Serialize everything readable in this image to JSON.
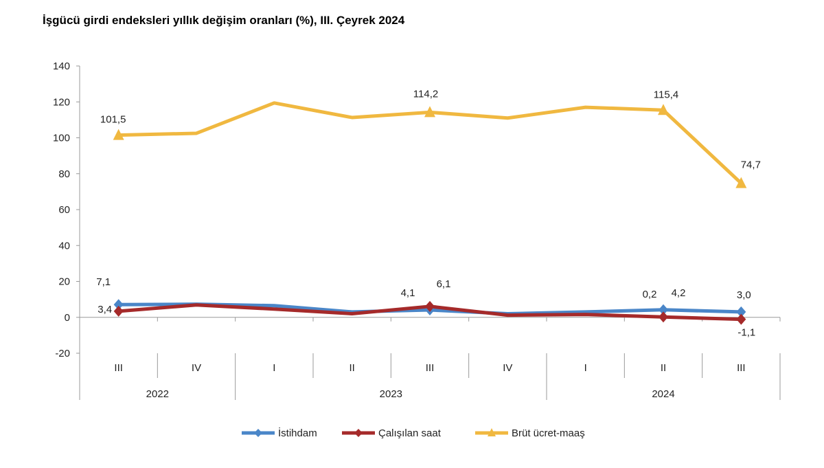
{
  "chart_data": {
    "type": "line",
    "title": "İşgücü girdi endeksleri yıllık değişim oranları (%), III. Çeyrek 2024",
    "categories": [
      "III",
      "IV",
      "I",
      "II",
      "III",
      "IV",
      "I",
      "II",
      "III"
    ],
    "years": [
      {
        "label": "2022",
        "start": 0,
        "end": 1
      },
      {
        "label": "2023",
        "start": 2,
        "end": 5
      },
      {
        "label": "2024",
        "start": 6,
        "end": 8
      }
    ],
    "ylim": [
      -20,
      140
    ],
    "yticks": [
      -20,
      0,
      20,
      40,
      60,
      80,
      100,
      120,
      140
    ],
    "grid": false,
    "legend": "bottom",
    "series": [
      {
        "name": "İstihdam",
        "color": "#4a86c8",
        "marker": "diamond",
        "values": [
          7.1,
          7.3,
          6.5,
          3.0,
          4.1,
          2.0,
          3.0,
          4.2,
          3.0
        ],
        "labels": [
          {
            "i": 0,
            "text": "7,1",
            "dx": -22,
            "dy": -28
          },
          {
            "i": 4,
            "text": "4,1",
            "dx": -32,
            "dy": -20
          },
          {
            "i": 7,
            "text": "4,2",
            "dx": 22,
            "dy": -20
          },
          {
            "i": 8,
            "text": "3,0",
            "dx": 4,
            "dy": -20
          }
        ]
      },
      {
        "name": "Çalışılan saat",
        "color": "#a52a2a",
        "marker": "diamond",
        "values": [
          3.4,
          6.9,
          4.6,
          2.0,
          6.1,
          1.2,
          1.6,
          0.2,
          -1.1
        ],
        "labels": [
          {
            "i": 0,
            "text": "3,4",
            "dx": -20,
            "dy": 2
          },
          {
            "i": 4,
            "text": "6,1",
            "dx": 20,
            "dy": -28
          },
          {
            "i": 7,
            "text": "0,2",
            "dx": -20,
            "dy": -28
          },
          {
            "i": 8,
            "text": "-1,1",
            "dx": 8,
            "dy": 24
          }
        ]
      },
      {
        "name": "Brüt ücret-maaş",
        "color": "#f0b840",
        "marker": "triangle",
        "values": [
          101.5,
          102.5,
          119.4,
          111.3,
          114.2,
          111.0,
          117.0,
          115.4,
          74.7
        ],
        "labels": [
          {
            "i": 0,
            "text": "101,5",
            "dx": -8,
            "dy": -18
          },
          {
            "i": 4,
            "text": "114,2",
            "dx": -6,
            "dy": -22
          },
          {
            "i": 7,
            "text": "115,4",
            "dx": 4,
            "dy": -18
          },
          {
            "i": 8,
            "text": "74,7",
            "dx": 14,
            "dy": -22
          }
        ]
      }
    ]
  }
}
